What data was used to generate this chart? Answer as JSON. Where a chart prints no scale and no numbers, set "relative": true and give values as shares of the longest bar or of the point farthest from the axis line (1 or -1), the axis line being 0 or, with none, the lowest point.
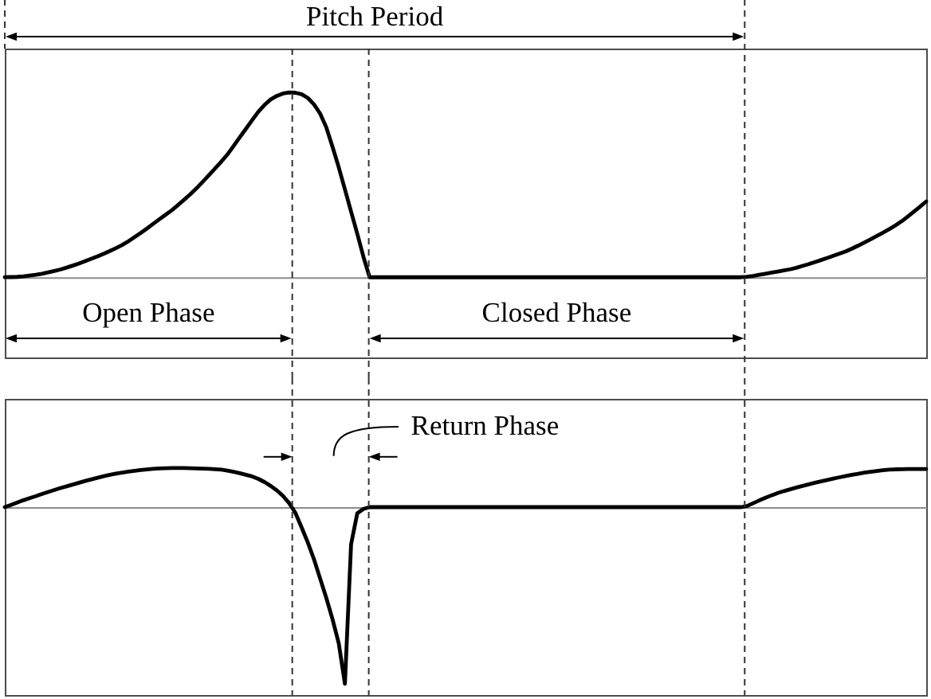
{
  "chart_data": [
    {
      "type": "line",
      "relative": true,
      "color": "#000000",
      "categories": [
        null,
        null,
        null,
        null,
        null,
        null,
        null,
        null,
        null,
        null,
        null,
        null,
        null,
        null,
        null,
        null,
        null,
        null,
        null,
        null,
        null,
        null,
        null,
        null,
        null,
        null,
        null,
        null,
        null,
        null,
        null,
        null,
        null,
        null,
        null,
        null,
        null,
        null,
        null,
        null,
        null,
        null,
        null,
        null,
        null,
        null,
        null,
        null,
        null,
        null,
        null,
        null,
        null,
        null,
        null,
        null,
        null,
        null,
        null,
        null,
        null,
        null,
        null,
        null,
        null,
        null,
        null,
        null,
        null,
        null,
        null,
        null,
        null,
        null,
        null,
        null,
        null,
        null,
        null,
        null,
        null,
        null,
        null,
        null,
        null,
        null,
        null,
        null,
        null,
        null,
        null,
        null,
        null,
        null,
        null,
        null,
        null,
        null,
        null,
        null,
        null,
        null,
        null,
        null,
        null,
        null,
        null,
        null,
        null,
        null,
        null,
        null,
        null,
        null,
        null,
        null,
        null,
        null,
        null,
        null,
        null,
        null,
        null,
        null,
        null,
        null,
        null,
        null,
        null,
        null,
        null,
        null,
        null,
        null,
        null,
        null,
        null,
        null,
        null,
        null,
        null,
        null,
        null,
        null,
        null,
        null,
        null,
        null,
        null,
        null
      ],
      "values": [
        0,
        0.001,
        0.002,
        0.005,
        0.009,
        0.013,
        0.019,
        0.026,
        0.034,
        0.042,
        0.052,
        0.063,
        0.074,
        0.087,
        0.1,
        0.113,
        0.127,
        0.142,
        0.158,
        0.175,
        0.195,
        0.217,
        0.24,
        0.264,
        0.289,
        0.314,
        0.338,
        0.362,
        0.39,
        0.419,
        0.449,
        0.481,
        0.516,
        0.552,
        0.588,
        0.625,
        0.664,
        0.71,
        0.757,
        0.803,
        0.85,
        0.895,
        0.932,
        0.962,
        0.981,
        0.994,
        1,
        0.998,
        0.99,
        0.97,
        0.935,
        0.885,
        0.81,
        0.705,
        0.595,
        0.475,
        0.355,
        0.235,
        0.11,
        0,
        0,
        0,
        0,
        0,
        0,
        0,
        0,
        0,
        0,
        0,
        0,
        0,
        0,
        0,
        0,
        0,
        0,
        0,
        0,
        0,
        0,
        0,
        0,
        0,
        0,
        0,
        0,
        0,
        0,
        0,
        0,
        0,
        0,
        0,
        0,
        0,
        0,
        0,
        0,
        0,
        0,
        0,
        0,
        0,
        0,
        0,
        0,
        0,
        0,
        0,
        0,
        0,
        0,
        0,
        0,
        0,
        0,
        0,
        0,
        0,
        0.003,
        0.007,
        0.013,
        0.019,
        0.025,
        0.031,
        0.037,
        0.043,
        0.051,
        0.061,
        0.071,
        0.082,
        0.093,
        0.104,
        0.116,
        0.128,
        0.14,
        0.155,
        0.171,
        0.188,
        0.205,
        0.223,
        0.241,
        0.26,
        0.28,
        0.302,
        0.328,
        0.355,
        0.382,
        0.41
      ],
      "annotations": [
        "Pitch Period",
        "Open Phase",
        "Closed Phase"
      ]
    },
    {
      "type": "line",
      "relative": true,
      "color": "#000000",
      "categories": [
        null,
        null,
        null,
        null,
        null,
        null,
        null,
        null,
        null,
        null,
        null,
        null,
        null,
        null,
        null,
        null,
        null,
        null,
        null,
        null,
        null,
        null,
        null,
        null,
        null,
        null,
        null,
        null,
        null,
        null,
        null,
        null,
        null,
        null,
        null,
        null,
        null,
        null,
        null,
        null,
        null,
        null,
        null,
        null,
        null,
        null,
        null,
        null,
        null,
        null,
        null,
        null,
        null,
        null,
        null,
        null,
        null,
        null,
        null,
        null,
        null,
        null,
        null,
        null,
        null,
        null,
        null,
        null,
        null,
        null,
        null,
        null,
        null,
        null,
        null,
        null,
        null,
        null,
        null,
        null,
        null,
        null,
        null,
        null,
        null,
        null,
        null,
        null,
        null,
        null,
        null,
        null,
        null,
        null,
        null,
        null,
        null,
        null,
        null,
        null,
        null,
        null,
        null,
        null,
        null,
        null,
        null,
        null,
        null,
        null,
        null,
        null,
        null,
        null,
        null,
        null,
        null,
        null,
        null,
        null,
        null,
        null,
        null,
        null,
        null,
        null,
        null,
        null,
        null,
        null,
        null,
        null,
        null,
        null,
        null,
        null,
        null,
        null,
        null,
        null,
        null,
        null,
        null,
        null,
        null,
        null,
        null,
        null,
        null,
        null
      ],
      "values": [
        0,
        0.013,
        0.026,
        0.039,
        0.051,
        0.062,
        0.074,
        0.086,
        0.097,
        0.108,
        0.118,
        0.128,
        0.138,
        0.148,
        0.157,
        0.166,
        0.175,
        0.183,
        0.19,
        0.196,
        0.201,
        0.206,
        0.21,
        0.214,
        0.217,
        0.219,
        0.22,
        0.221,
        0.221,
        0.221,
        0.22,
        0.219,
        0.218,
        0.217,
        0.215,
        0.212,
        0.207,
        0.2,
        0.192,
        0.183,
        0.174,
        0.16,
        0.142,
        0.12,
        0.095,
        0.063,
        0.022,
        -0.033,
        -0.115,
        -0.2,
        -0.295,
        -0.405,
        -0.515,
        -0.635,
        -0.77,
        -1,
        -0.21,
        -0.035,
        -0.01,
        0,
        0,
        0,
        0,
        0,
        0,
        0,
        0,
        0,
        0,
        0,
        0,
        0,
        0,
        0,
        0,
        0,
        0,
        0,
        0,
        0,
        0,
        0,
        0,
        0,
        0,
        0,
        0,
        0,
        0,
        0,
        0,
        0,
        0,
        0,
        0,
        0,
        0,
        0,
        0,
        0,
        0,
        0,
        0,
        0,
        0,
        0,
        0,
        0,
        0,
        0,
        0,
        0,
        0,
        0,
        0,
        0,
        0,
        0,
        0,
        0,
        0.006,
        0.022,
        0.038,
        0.053,
        0.067,
        0.08,
        0.091,
        0.101,
        0.111,
        0.12,
        0.129,
        0.138,
        0.146,
        0.154,
        0.162,
        0.169,
        0.176,
        0.183,
        0.189,
        0.195,
        0.2,
        0.205,
        0.209,
        0.212,
        0.214,
        0.215,
        0.216,
        0.216,
        0.216,
        0.216
      ],
      "annotations": [
        "Return Phase"
      ]
    }
  ]
}
